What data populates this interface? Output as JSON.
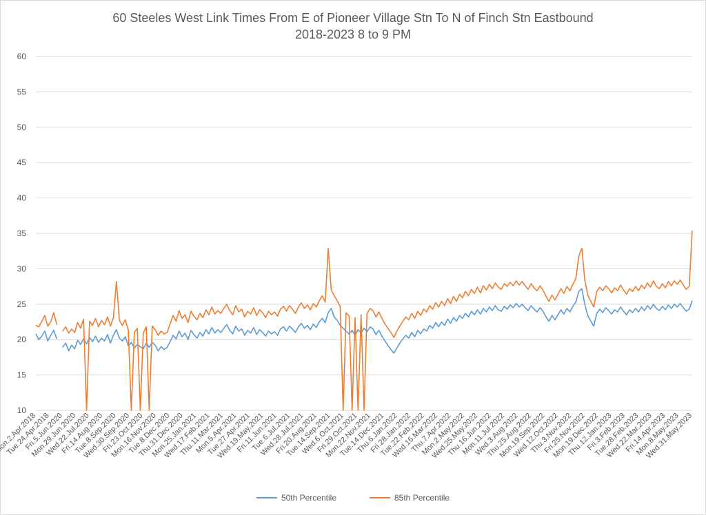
{
  "title_line1": "60 Steeles West Link Times From E of Pioneer Village Stn To N of Finch Stn Eastbound",
  "title_line2": "2018-2023 8 to 9 PM",
  "colors": {
    "p50": "#5b9bd5",
    "p85": "#ed7d31",
    "grid": "#d9d9d9",
    "text": "#595959"
  },
  "chart_data": {
    "type": "line",
    "title": "60 Steeles West Link Times From E of Pioneer Village Stn To N of Finch Stn Eastbound 2018-2023 8 to 9 PM",
    "xlabel": "",
    "ylabel": "",
    "ylim": [
      10,
      60
    ],
    "yticks": [
      10,
      15,
      20,
      25,
      30,
      35,
      40,
      45,
      50,
      55,
      60
    ],
    "grid": true,
    "legend_position": "bottom",
    "x_tick_labels": [
      "Mon.2.Apr.2018",
      "Tue.24.Apr.2018",
      "Fri.5.Jun.2020",
      "Mon.29.Jun.2020",
      "Wed.22.Jul.2020",
      "Fri.14.Aug.2020",
      "Tue.8.Sep.2020",
      "Wed.30.Sep.2020",
      "Fri.23.Oct.2020",
      "Mon.16.Nov.2020",
      "Tue.8.Dec.2020",
      "Thu.31.Dec.2020",
      "Mon.25.Jan.2021",
      "Wed.17.Feb.2021",
      "Thu.11.Mar.2021",
      "Mon.5.Apr.2021",
      "Tue.27.Apr.2021",
      "Wed.19.May.2021",
      "Fri.11.Jun.2021",
      "Tue.6.Jul.2021",
      "Wed.28.Jul.2021",
      "Fri.20.Aug.2021",
      "Tue.14.Sep.2021",
      "Wed.6.Oct.2021",
      "Fri.29.Oct.2021",
      "Mon.22.Nov.2021",
      "Tue.14.Dec.2021",
      "Thu.6.Jan.2022",
      "Fri.28.Jan.2022",
      "Tue.22.Feb.2022",
      "Wed.16.Mar.2022",
      "Thu.7.Apr.2022",
      "Mon.2.May.2022",
      "Wed.25.May.2022",
      "Thu.16.Jun.2022",
      "Mon.11.Jul.2022",
      "Wed.3.Aug.2022",
      "Thu.25.Aug.2022",
      "Mon.19.Sep.2022",
      "Wed.12.Oct.2022",
      "Thu.3.Nov.2022",
      "Fri.25.Nov.2022",
      "Mon.19.Dec.2022",
      "Thu.12.Jan.2023",
      "Fri.3.Feb.2023",
      "Tue.28.Feb.2023",
      "Wed.22.Mar.2023",
      "Fri.14.Apr.2023",
      "Mon.8.May.2023",
      "Wed.31.May.2023"
    ],
    "series": [
      {
        "name": "50th Percentile",
        "values": [
          20.8,
          20.0,
          20.5,
          21.2,
          19.8,
          20.6,
          21.3,
          20.1,
          null,
          18.9,
          19.5,
          18.4,
          19.2,
          18.7,
          19.9,
          19.3,
          20.1,
          19.4,
          20.3,
          19.7,
          20.5,
          19.6,
          20.2,
          19.8,
          20.7,
          19.5,
          20.6,
          21.4,
          20.2,
          19.8,
          20.4,
          19.1,
          19.6,
          18.8,
          19.3,
          19.0,
          18.7,
          19.5,
          18.9,
          19.6,
          19.2,
          18.4,
          19.0,
          18.6,
          18.9,
          19.7,
          20.6,
          20.1,
          21.2,
          20.4,
          20.9,
          20.0,
          21.3,
          20.7,
          20.2,
          21.0,
          20.5,
          21.4,
          20.8,
          21.7,
          20.9,
          21.4,
          21.0,
          21.6,
          22.1,
          21.3,
          20.8,
          21.9,
          21.2,
          21.5,
          20.6,
          21.3,
          20.9,
          21.7,
          20.7,
          21.4,
          21.0,
          20.5,
          21.2,
          20.8,
          21.1,
          20.6,
          21.5,
          21.8,
          21.2,
          21.9,
          21.5,
          21.0,
          21.8,
          22.3,
          21.6,
          22.0,
          21.4,
          22.2,
          21.7,
          22.5,
          23.0,
          22.4,
          23.8,
          24.4,
          23.2,
          22.7,
          22.0,
          21.6,
          21.2,
          20.8,
          21.3,
          20.6,
          21.4,
          20.9,
          21.6,
          21.1,
          21.8,
          21.5,
          20.7,
          21.3,
          20.5,
          19.8,
          19.2,
          18.6,
          18.1,
          18.8,
          19.5,
          20.1,
          20.6,
          20.2,
          21.0,
          20.4,
          21.3,
          20.8,
          21.5,
          21.2,
          22.0,
          21.6,
          22.4,
          21.8,
          22.5,
          22.0,
          22.9,
          22.3,
          23.1,
          22.6,
          23.4,
          23.0,
          23.7,
          23.2,
          24.0,
          23.5,
          24.2,
          23.6,
          24.4,
          23.9,
          24.6,
          24.1,
          24.8,
          24.2,
          24.0,
          24.7,
          24.3,
          24.9,
          24.5,
          25.1,
          24.6,
          25.0,
          24.5,
          24.1,
          24.8,
          24.3,
          23.9,
          24.5,
          24.0,
          23.2,
          22.6,
          23.4,
          22.8,
          23.5,
          24.2,
          23.6,
          24.4,
          23.9,
          24.7,
          25.3,
          26.8,
          27.2,
          25.0,
          23.4,
          22.6,
          21.9,
          23.7,
          24.3,
          23.8,
          24.5,
          24.1,
          23.6,
          24.2,
          23.9,
          24.6,
          24.0,
          23.5,
          24.2,
          23.8,
          24.4,
          23.9,
          24.6,
          24.1,
          24.8,
          24.3,
          25.0,
          24.4,
          24.1,
          24.7,
          24.2,
          24.9,
          24.4,
          25.0,
          24.6,
          25.1,
          24.5,
          24.0,
          24.3,
          25.5
        ]
      },
      {
        "name": "85th Percentile",
        "values": [
          22.0,
          21.8,
          22.6,
          23.4,
          21.9,
          22.5,
          23.8,
          22.1,
          null,
          21.2,
          21.8,
          20.9,
          21.5,
          21.0,
          22.4,
          21.6,
          22.9,
          10.0,
          22.6,
          22.0,
          23.0,
          21.8,
          22.7,
          22.1,
          23.2,
          21.9,
          23.1,
          28.2,
          22.7,
          22.0,
          22.8,
          21.3,
          10.0,
          21.0,
          21.6,
          10.0,
          20.9,
          21.8,
          10.0,
          21.9,
          21.4,
          20.6,
          21.2,
          20.8,
          21.0,
          22.2,
          23.4,
          22.6,
          24.1,
          23.0,
          23.5,
          22.4,
          24.0,
          23.3,
          22.8,
          23.7,
          23.1,
          24.2,
          23.5,
          24.6,
          23.6,
          24.1,
          23.7,
          24.4,
          25.0,
          24.1,
          23.5,
          24.8,
          23.9,
          24.3,
          23.2,
          24.0,
          23.6,
          24.5,
          23.4,
          24.2,
          23.8,
          23.1,
          24.0,
          23.5,
          23.9,
          23.3,
          24.3,
          24.7,
          24.0,
          24.8,
          24.3,
          23.7,
          24.6,
          25.2,
          24.4,
          24.9,
          24.2,
          25.1,
          24.6,
          25.5,
          26.2,
          25.3,
          32.9,
          27.0,
          26.2,
          25.5,
          24.7,
          10.0,
          23.8,
          23.3,
          10.0,
          23.1,
          10.0,
          23.5,
          10.0,
          23.7,
          24.4,
          24.1,
          23.2,
          23.9,
          23.0,
          22.2,
          21.6,
          21.0,
          20.3,
          21.2,
          21.9,
          22.6,
          23.2,
          22.8,
          23.7,
          23.0,
          24.0,
          23.4,
          24.3,
          23.9,
          24.8,
          24.3,
          25.2,
          24.6,
          25.4,
          24.8,
          25.8,
          25.1,
          26.1,
          25.4,
          26.4,
          25.9,
          26.8,
          26.2,
          27.1,
          26.5,
          27.4,
          26.6,
          27.6,
          27.0,
          27.8,
          27.2,
          28.0,
          27.4,
          27.1,
          27.9,
          27.5,
          28.1,
          27.6,
          28.3,
          27.7,
          28.2,
          27.6,
          27.1,
          27.9,
          27.3,
          26.9,
          27.6,
          27.0,
          26.1,
          25.4,
          26.3,
          25.6,
          26.4,
          27.2,
          26.5,
          27.5,
          26.9,
          27.8,
          28.6,
          31.8,
          32.9,
          28.4,
          26.3,
          25.4,
          24.6,
          26.8,
          27.4,
          26.9,
          27.6,
          27.2,
          26.6,
          27.3,
          26.9,
          27.7,
          27.0,
          26.4,
          27.2,
          26.8,
          27.5,
          26.9,
          27.7,
          27.2,
          28.0,
          27.4,
          28.3,
          27.5,
          27.2,
          27.9,
          27.3,
          28.2,
          27.6,
          28.3,
          27.8,
          28.4,
          27.7,
          27.1,
          27.5,
          35.4
        ]
      }
    ]
  }
}
